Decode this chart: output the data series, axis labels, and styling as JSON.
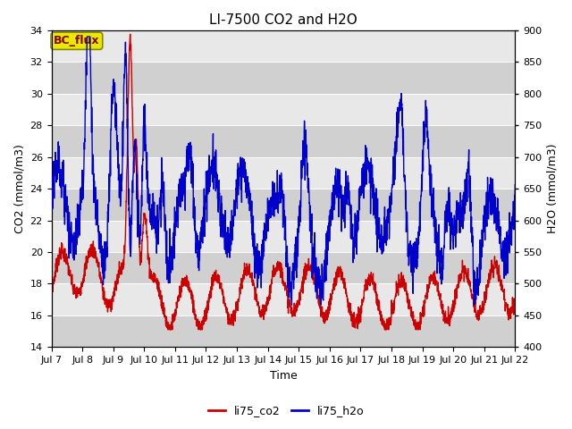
{
  "title": "LI-7500 CO2 and H2O",
  "xlabel": "Time",
  "ylabel_left": "CO2 (mmol/m3)",
  "ylabel_right": "H2O (mmol/m3)",
  "annotation_text": "BC_flux",
  "ylim_left": [
    14,
    34
  ],
  "ylim_right": [
    400,
    900
  ],
  "yticks_left": [
    14,
    16,
    18,
    20,
    22,
    24,
    26,
    28,
    30,
    32,
    34
  ],
  "yticks_right": [
    400,
    450,
    500,
    550,
    600,
    650,
    700,
    750,
    800,
    850,
    900
  ],
  "xtick_labels": [
    "Jul 7",
    "Jul 8",
    "Jul 9",
    "Jul 10",
    "Jul 11",
    "Jul 12",
    "Jul 13",
    "Jul 14",
    "Jul 15",
    "Jul 16",
    "Jul 17",
    "Jul 18",
    "Jul 19",
    "Jul 20",
    "Jul 21",
    "Jul 22"
  ],
  "color_co2": "#cc0000",
  "color_h2o": "#0000cc",
  "legend_co2": "li75_co2",
  "legend_h2o": "li75_h2o",
  "plot_bg_color": "#e8e8e8",
  "stripe_color": "#d0d0d0",
  "annotation_bg": "#e8e800",
  "annotation_border": "#888800",
  "annotation_text_color": "#880000",
  "title_fontsize": 11,
  "axis_label_fontsize": 9,
  "tick_fontsize": 8,
  "legend_fontsize": 9,
  "line_width": 1.0
}
